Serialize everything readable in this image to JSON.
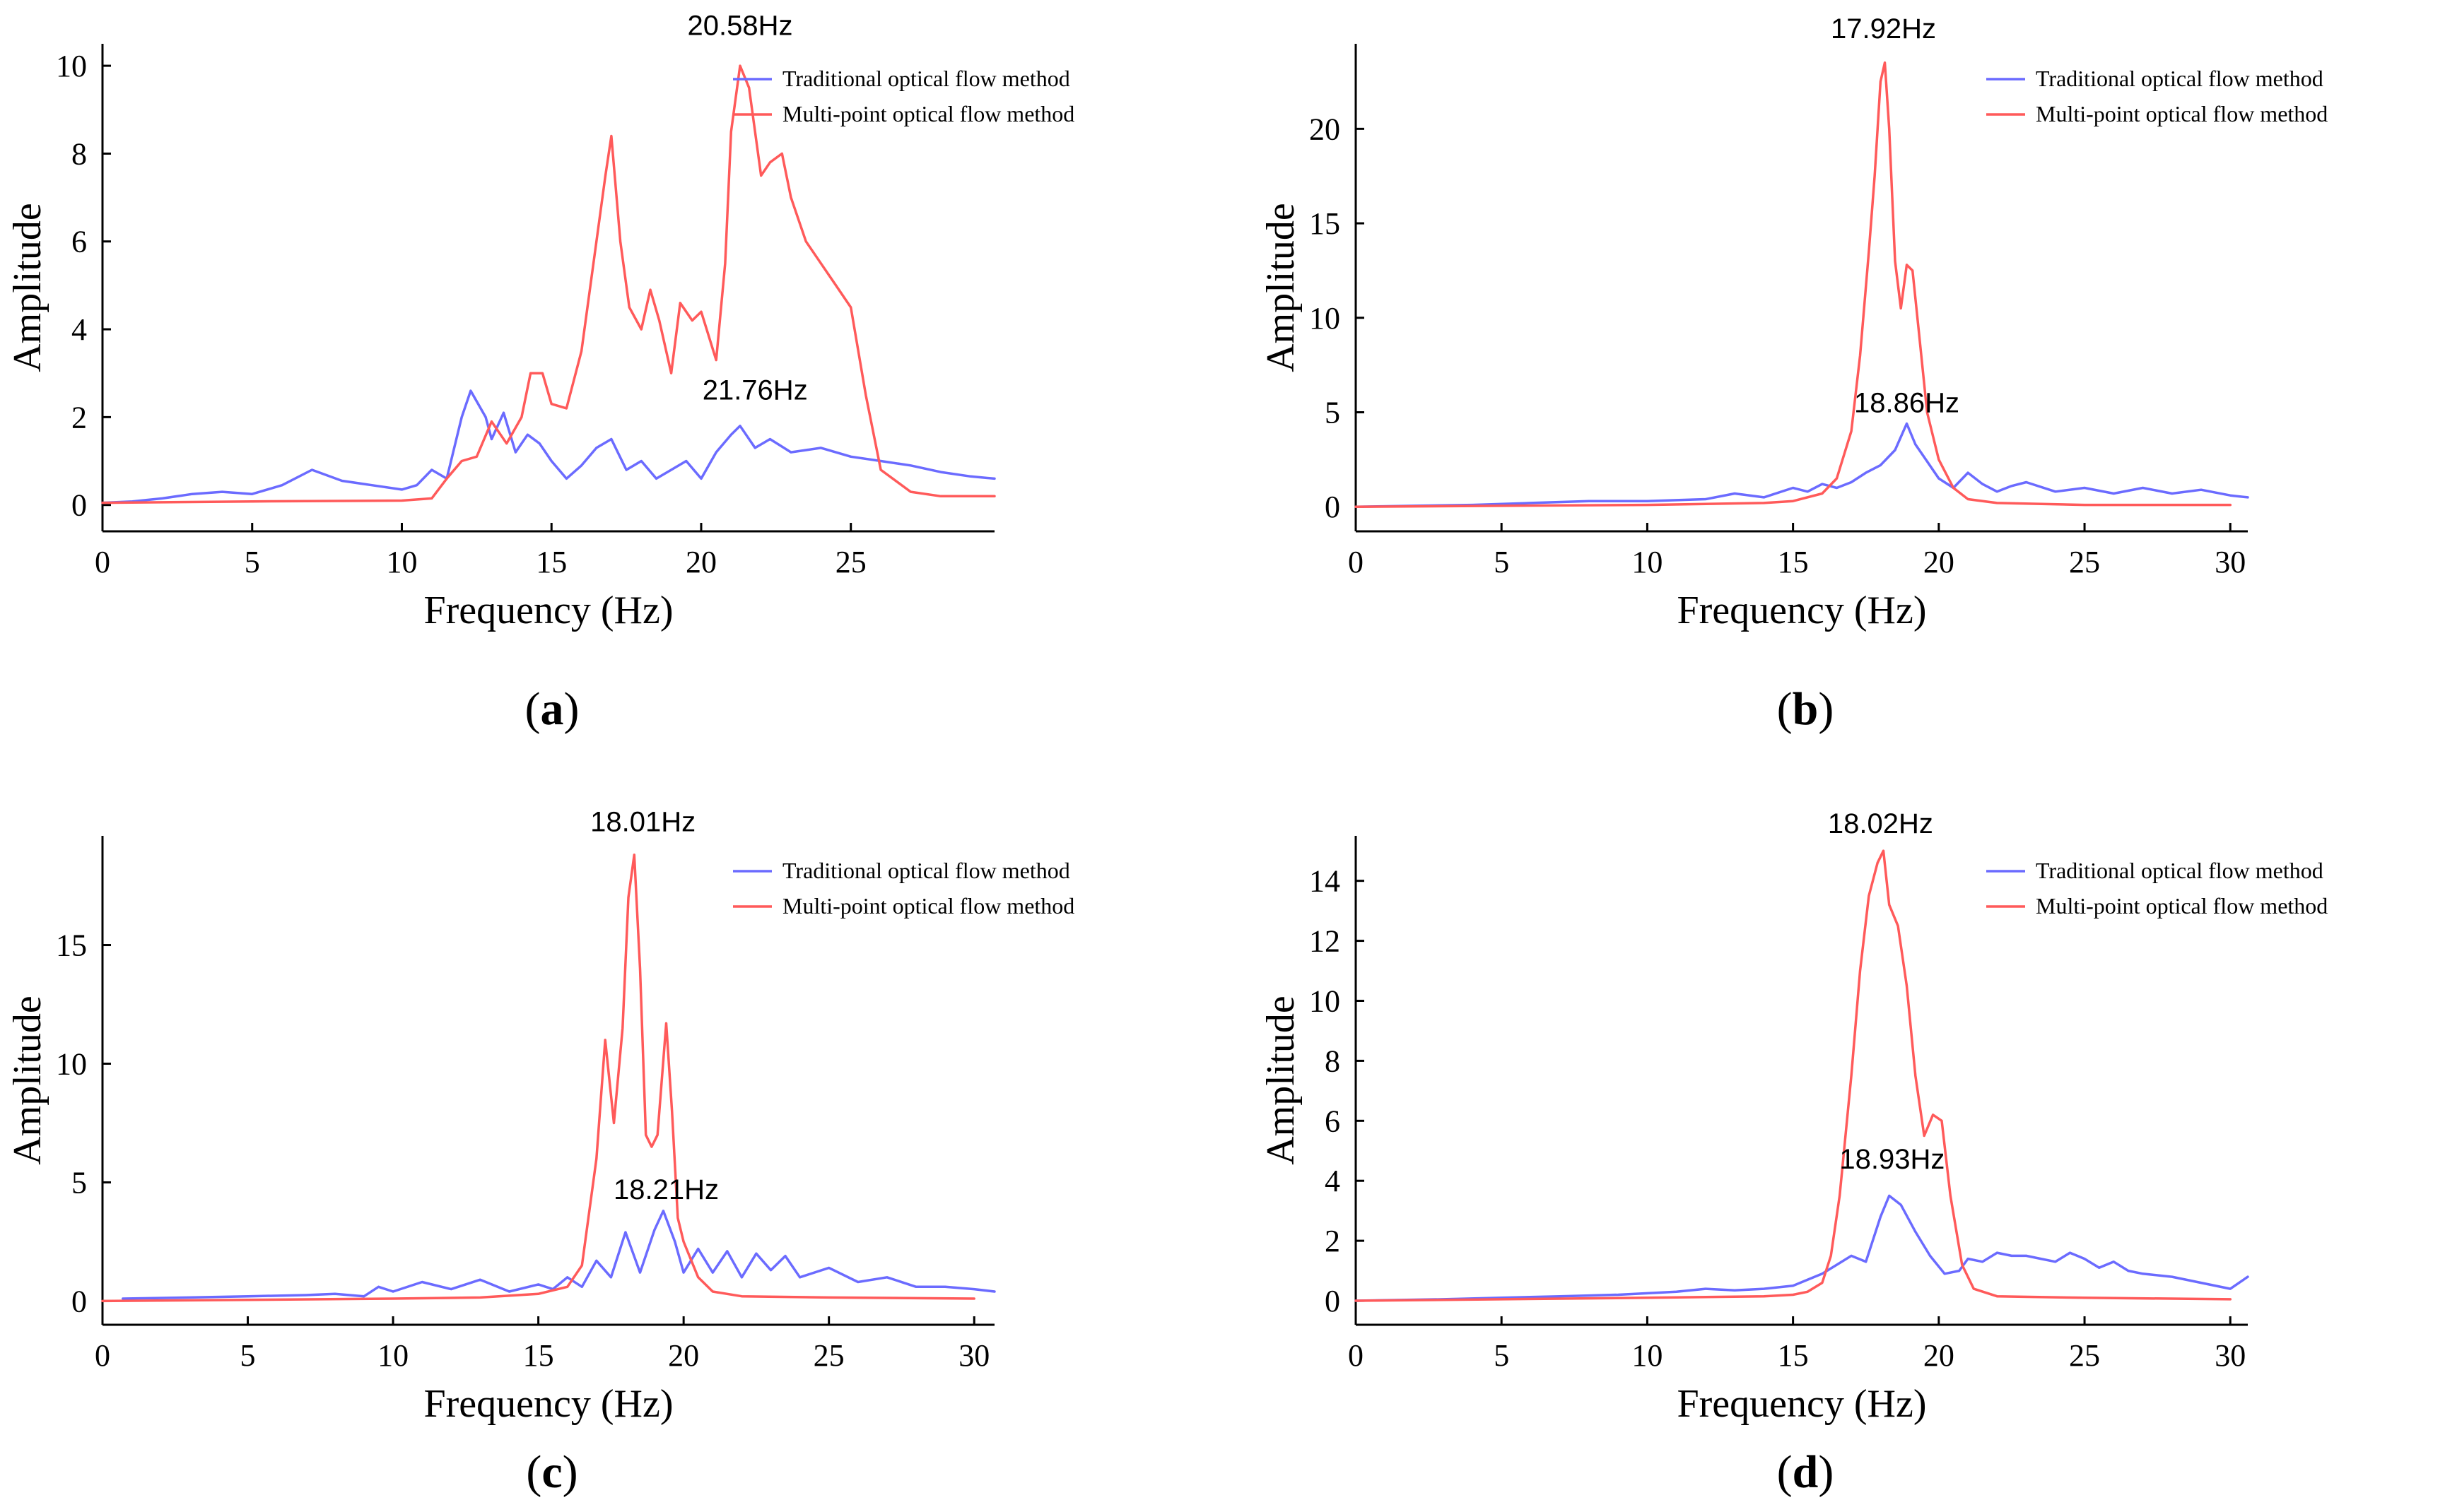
{
  "colors": {
    "traditional": "#6b6bff",
    "multipoint": "#ff5a5a"
  },
  "chart_data": [
    {
      "type": "line",
      "caption": "a",
      "xlabel": "Frequency (Hz)",
      "ylabel": "Amplitude",
      "xlim": [
        0,
        29.8
      ],
      "ylim": [
        -0.6,
        10.5
      ],
      "xticks": [
        0,
        5,
        10,
        15,
        20,
        25
      ],
      "yticks": [
        0,
        2,
        4,
        6,
        8,
        10
      ],
      "legend_position": "top-right",
      "annotations": [
        {
          "text": "20.58Hz",
          "x": 21.3,
          "y": 10.7
        },
        {
          "text": "21.76Hz",
          "x": 21.8,
          "y": 2.4
        }
      ],
      "series": [
        {
          "name": "Traditional optical flow method",
          "color_key": "traditional",
          "x": [
            0,
            1,
            2,
            3,
            4,
            5,
            6,
            7,
            8,
            9,
            10,
            10.5,
            11,
            11.5,
            12,
            12.3,
            12.8,
            13,
            13.4,
            13.8,
            14.2,
            14.6,
            15,
            15.5,
            16,
            16.5,
            17,
            17.5,
            18,
            18.5,
            19,
            19.5,
            20,
            20.5,
            21,
            21.3,
            21.8,
            22.3,
            23,
            24,
            25,
            26,
            27,
            28,
            29,
            29.8
          ],
          "values": [
            0.05,
            0.08,
            0.15,
            0.25,
            0.3,
            0.25,
            0.45,
            0.8,
            0.55,
            0.45,
            0.35,
            0.45,
            0.8,
            0.6,
            2.0,
            2.6,
            2.0,
            1.5,
            2.1,
            1.2,
            1.6,
            1.4,
            1.0,
            0.6,
            0.9,
            1.3,
            1.5,
            0.8,
            1.0,
            0.6,
            0.8,
            1.0,
            0.6,
            1.2,
            1.6,
            1.8,
            1.3,
            1.5,
            1.2,
            1.3,
            1.1,
            1.0,
            0.9,
            0.75,
            0.65,
            0.6
          ]
        },
        {
          "name": "Multi-point optical flow method",
          "color_key": "multipoint",
          "x": [
            0,
            5,
            10,
            11,
            11.5,
            12,
            12.5,
            13,
            13.5,
            14,
            14.3,
            14.7,
            15,
            15.5,
            16,
            16.5,
            16.8,
            17,
            17.3,
            17.6,
            18,
            18.3,
            18.6,
            19,
            19.3,
            19.7,
            20,
            20.5,
            20.8,
            21,
            21.3,
            21.6,
            22,
            22.3,
            22.7,
            23,
            23.5,
            24,
            24.5,
            25,
            25.5,
            26,
            27,
            28,
            29,
            29.8
          ],
          "values": [
            0.05,
            0.08,
            0.1,
            0.15,
            0.6,
            1.0,
            1.1,
            1.9,
            1.4,
            2.0,
            3.0,
            3.0,
            2.3,
            2.2,
            3.5,
            6.0,
            7.5,
            8.4,
            6.0,
            4.5,
            4.0,
            4.9,
            4.2,
            3.0,
            4.6,
            4.2,
            4.4,
            3.3,
            5.5,
            8.5,
            10.0,
            9.5,
            7.5,
            7.8,
            8.0,
            7.0,
            6.0,
            5.5,
            5.0,
            4.5,
            2.5,
            0.8,
            0.3,
            0.2,
            0.2,
            0.2
          ]
        }
      ]
    },
    {
      "type": "line",
      "caption": "b",
      "xlabel": "Frequency (Hz)",
      "ylabel": "Amplitude",
      "xlim": [
        0,
        30.6
      ],
      "ylim": [
        -1.3,
        24.5
      ],
      "xticks": [
        0,
        5,
        10,
        15,
        20,
        25,
        30
      ],
      "yticks": [
        0,
        5,
        10,
        15,
        20
      ],
      "legend_position": "top-right",
      "annotations": [
        {
          "text": "17.92Hz",
          "x": 18.1,
          "y": 24.8
        },
        {
          "text": "18.86Hz",
          "x": 18.9,
          "y": 5.0
        }
      ],
      "series": [
        {
          "name": "Traditional optical flow method",
          "color_key": "traditional",
          "x": [
            0,
            2,
            4,
            6,
            8,
            10,
            12,
            13,
            14,
            15,
            15.5,
            16,
            16.5,
            17,
            17.5,
            18,
            18.5,
            18.9,
            19.2,
            19.6,
            20,
            20.5,
            21,
            21.5,
            22,
            22.5,
            23,
            24,
            25,
            26,
            27,
            28,
            29,
            30,
            30.6
          ],
          "values": [
            0,
            0.05,
            0.1,
            0.2,
            0.3,
            0.3,
            0.4,
            0.7,
            0.5,
            1.0,
            0.8,
            1.2,
            1.0,
            1.3,
            1.8,
            2.2,
            3.0,
            4.4,
            3.3,
            2.4,
            1.5,
            1.0,
            1.8,
            1.2,
            0.8,
            1.1,
            1.3,
            0.8,
            1.0,
            0.7,
            1.0,
            0.7,
            0.9,
            0.6,
            0.5
          ]
        },
        {
          "name": "Multi-point optical flow method",
          "color_key": "multipoint",
          "x": [
            0,
            5,
            10,
            14,
            15,
            16,
            16.5,
            17,
            17.3,
            17.6,
            17.8,
            18,
            18.15,
            18.3,
            18.5,
            18.7,
            18.9,
            19.1,
            19.3,
            19.6,
            20,
            20.5,
            21,
            22,
            25,
            30
          ],
          "values": [
            0,
            0.05,
            0.1,
            0.2,
            0.3,
            0.7,
            1.5,
            4.0,
            8.0,
            13.5,
            17.5,
            22.5,
            23.5,
            20.0,
            13.0,
            10.5,
            12.8,
            12.5,
            9.5,
            5.0,
            2.5,
            1.0,
            0.4,
            0.2,
            0.1,
            0.1
          ]
        }
      ]
    },
    {
      "type": "line",
      "caption": "c",
      "xlabel": "Frequency (Hz)",
      "ylabel": "Amplitude",
      "xlim": [
        0,
        30.7
      ],
      "ylim": [
        -1.0,
        19.6
      ],
      "xticks": [
        0,
        5,
        10,
        15,
        20,
        25,
        30
      ],
      "yticks": [
        0,
        5,
        10,
        15
      ],
      "legend_position": "top-right",
      "annotations": [
        {
          "text": "18.01Hz",
          "x": 18.6,
          "y": 19.8
        },
        {
          "text": "18.21Hz",
          "x": 19.4,
          "y": 4.3
        }
      ],
      "series": [
        {
          "name": "Traditional optical flow method",
          "color_key": "traditional",
          "x": [
            0.7,
            3,
            5,
            7,
            8,
            9,
            9.5,
            10,
            11,
            12,
            13,
            14,
            15,
            15.5,
            16,
            16.5,
            17,
            17.5,
            18,
            18.5,
            19,
            19.3,
            19.7,
            20,
            20.5,
            21,
            21.5,
            22,
            22.5,
            23,
            23.5,
            24,
            25,
            26,
            27,
            28,
            29,
            30,
            30.7
          ],
          "values": [
            0.1,
            0.15,
            0.2,
            0.25,
            0.3,
            0.2,
            0.6,
            0.4,
            0.8,
            0.5,
            0.9,
            0.4,
            0.7,
            0.5,
            1.0,
            0.6,
            1.7,
            1.0,
            2.9,
            1.2,
            3.0,
            3.8,
            2.5,
            1.2,
            2.2,
            1.2,
            2.1,
            1.0,
            2.0,
            1.3,
            1.9,
            1.0,
            1.4,
            0.8,
            1.0,
            0.6,
            0.6,
            0.5,
            0.4
          ]
        },
        {
          "name": "Multi-point optical flow method",
          "color_key": "multipoint",
          "x": [
            0,
            5,
            10,
            13,
            15,
            16,
            16.5,
            17,
            17.3,
            17.6,
            17.9,
            18.1,
            18.3,
            18.5,
            18.7,
            18.9,
            19.1,
            19.4,
            19.6,
            19.8,
            20,
            20.5,
            21,
            22,
            25,
            30
          ],
          "values": [
            0,
            0.05,
            0.1,
            0.15,
            0.3,
            0.6,
            1.5,
            6.0,
            11.0,
            7.5,
            11.5,
            17.0,
            18.8,
            14.0,
            7.0,
            6.5,
            7.0,
            11.7,
            8.0,
            3.5,
            2.5,
            1.0,
            0.4,
            0.2,
            0.15,
            0.1
          ]
        }
      ]
    },
    {
      "type": "line",
      "caption": "d",
      "xlabel": "Frequency (Hz)",
      "ylabel": "Amplitude",
      "xlim": [
        0,
        30.6
      ],
      "ylim": [
        -0.8,
        15.5
      ],
      "xticks": [
        0,
        5,
        10,
        15,
        20,
        25,
        30
      ],
      "yticks": [
        0,
        2,
        4,
        6,
        8,
        10,
        12,
        14
      ],
      "legend_position": "top-right",
      "annotations": [
        {
          "text": "18.02Hz",
          "x": 18.0,
          "y": 15.6
        },
        {
          "text": "18.93Hz",
          "x": 18.4,
          "y": 4.4
        }
      ],
      "series": [
        {
          "name": "Traditional optical flow method",
          "color_key": "traditional",
          "x": [
            0,
            3,
            5,
            7,
            9,
            10,
            11,
            12,
            13,
            14,
            15,
            15.5,
            16,
            16.5,
            17,
            17.5,
            18,
            18.3,
            18.7,
            19.2,
            19.7,
            20.2,
            20.7,
            21,
            21.5,
            22,
            22.5,
            23,
            23.5,
            24,
            24.5,
            25,
            25.5,
            26,
            26.5,
            27,
            28,
            29,
            30,
            30.6
          ],
          "values": [
            0,
            0.05,
            0.1,
            0.15,
            0.2,
            0.25,
            0.3,
            0.4,
            0.35,
            0.4,
            0.5,
            0.7,
            0.9,
            1.2,
            1.5,
            1.3,
            2.8,
            3.5,
            3.2,
            2.3,
            1.5,
            0.9,
            1.0,
            1.4,
            1.3,
            1.6,
            1.5,
            1.5,
            1.4,
            1.3,
            1.6,
            1.4,
            1.1,
            1.3,
            1.0,
            0.9,
            0.8,
            0.6,
            0.4,
            0.8
          ]
        },
        {
          "name": "Multi-point optical flow method",
          "color_key": "multipoint",
          "x": [
            0,
            5,
            10,
            14,
            15,
            15.5,
            16,
            16.3,
            16.6,
            17,
            17.3,
            17.6,
            17.9,
            18.1,
            18.3,
            18.6,
            18.9,
            19.2,
            19.5,
            19.8,
            20.1,
            20.4,
            20.8,
            21.2,
            22,
            25,
            30
          ],
          "values": [
            0,
            0.05,
            0.1,
            0.15,
            0.2,
            0.3,
            0.6,
            1.5,
            3.5,
            7.5,
            11.0,
            13.5,
            14.6,
            15.0,
            13.2,
            12.5,
            10.5,
            7.5,
            5.5,
            6.2,
            6.0,
            3.5,
            1.2,
            0.4,
            0.15,
            0.1,
            0.05
          ]
        }
      ]
    }
  ]
}
